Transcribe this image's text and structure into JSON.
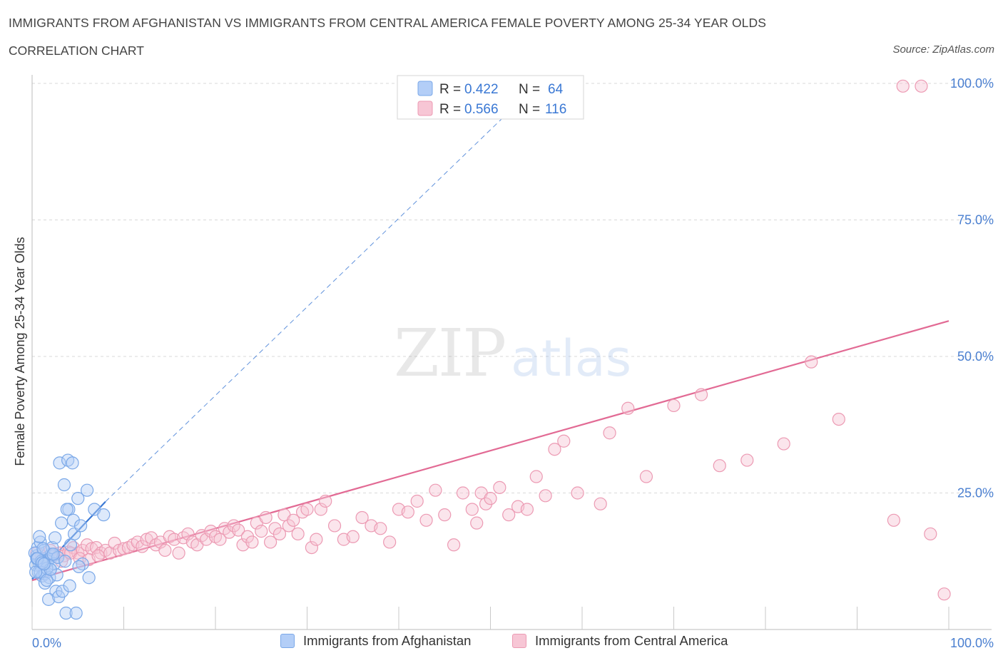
{
  "header": {
    "title": "IMMIGRANTS FROM AFGHANISTAN VS IMMIGRANTS FROM CENTRAL AMERICA FEMALE POVERTY AMONG 25-34 YEAR OLDS",
    "subtitle": "CORRELATION CHART",
    "source": "Source: ZipAtlas.com"
  },
  "watermark": {
    "zip": "ZIP",
    "atlas": "atlas"
  },
  "colors": {
    "blue_fill": "#b3cef7",
    "blue_stroke": "#7aa8e8",
    "blue_line": "#3a78d4",
    "pink_fill": "#f7c6d5",
    "pink_stroke": "#ec9ab3",
    "pink_line": "#e26a94",
    "axis_label": "#4a7fd0",
    "grid": "#d9d9d9"
  },
  "legend_box": {
    "rows": [
      {
        "r_label": "R = ",
        "r_value": "0.422",
        "n_label": "N = ",
        "n_value": "64"
      },
      {
        "r_label": "R = ",
        "r_value": "0.566",
        "n_label": "N = ",
        "n_value": "116"
      }
    ]
  },
  "chart_data": {
    "type": "scatter",
    "title": "IMMIGRANTS FROM AFGHANISTAN VS IMMIGRANTS FROM CENTRAL AMERICA FEMALE POVERTY AMONG 25-34 YEAR OLDS",
    "subtitle": "CORRELATION CHART",
    "xlabel": "",
    "ylabel": "Female Poverty Among 25-34 Year Olds",
    "xlim": [
      0,
      100
    ],
    "ylim": [
      0,
      100
    ],
    "x_tick_labels": [
      "0.0%",
      "100.0%"
    ],
    "y_tick_labels": [
      "25.0%",
      "50.0%",
      "75.0%",
      "100.0%"
    ],
    "y_ticks": [
      25,
      50,
      75,
      100
    ],
    "grid": true,
    "legend_position": "bottom",
    "series": [
      {
        "name": "Immigrants from Afghanistan",
        "R": 0.422,
        "N": 64,
        "trend": {
          "x": [
            0,
            8
          ],
          "y": [
            9.2,
            23.4
          ],
          "extended_x": [
            8,
            54
          ],
          "extended_y": [
            23.4,
            98
          ]
        },
        "x": [
          0.5,
          0.8,
          1.0,
          1.2,
          1.5,
          1.8,
          2.0,
          2.3,
          0.6,
          0.9,
          1.3,
          1.7,
          2.1,
          0.4,
          0.7,
          1.1,
          1.4,
          1.9,
          2.4,
          0.3,
          0.5,
          1.0,
          1.6,
          2.2,
          2.5,
          0.8,
          1.2,
          3.0,
          3.5,
          4.0,
          3.2,
          4.5,
          5.0,
          5.5,
          6.0,
          6.8,
          7.8,
          3.8,
          4.2,
          2.8,
          3.6,
          4.6,
          5.1,
          0.6,
          1.4,
          2.6,
          1.8,
          2.9,
          3.3,
          4.1,
          3.7,
          4.8,
          2.7,
          0.9,
          1.6,
          2.0,
          0.4,
          1.1,
          2.3,
          3.9,
          4.4,
          5.3,
          6.2,
          1.3
        ],
        "y": [
          13.5,
          12.0,
          11.5,
          10.2,
          13.0,
          12.8,
          11.0,
          13.5,
          15.0,
          16.0,
          14.5,
          12.5,
          13.8,
          11.8,
          10.5,
          9.8,
          10.2,
          9.5,
          12.0,
          14.0,
          13.0,
          12.5,
          11.2,
          15.0,
          16.8,
          17.0,
          14.8,
          30.5,
          26.5,
          22.0,
          19.5,
          20.0,
          24.0,
          12.0,
          25.5,
          22.0,
          21.0,
          22.0,
          15.5,
          13.2,
          12.5,
          17.5,
          11.5,
          13.0,
          8.5,
          7.0,
          5.5,
          6.0,
          7.0,
          8.0,
          3.0,
          3.0,
          10.0,
          10.5,
          9.0,
          11.0,
          10.5,
          12.2,
          13.8,
          31.0,
          30.5,
          19.0,
          9.5,
          12.0
        ]
      },
      {
        "name": "Immigrants from Central America",
        "R": 0.566,
        "N": 116,
        "trend": {
          "x": [
            0,
            100
          ],
          "y": [
            9.0,
            56.5
          ]
        },
        "x": [
          0.5,
          1.0,
          1.5,
          2.0,
          2.5,
          3.0,
          3.5,
          4.0,
          4.5,
          5.0,
          5.5,
          6.0,
          6.5,
          7.0,
          7.5,
          8.0,
          8.5,
          9.0,
          9.5,
          10.0,
          10.5,
          11.0,
          11.5,
          12.0,
          12.5,
          13.0,
          13.5,
          14.0,
          14.5,
          15.0,
          15.5,
          16.0,
          16.5,
          17.0,
          17.5,
          18.0,
          18.5,
          19.0,
          19.5,
          20.0,
          20.5,
          21.0,
          21.5,
          22.0,
          22.5,
          23.0,
          23.5,
          24.0,
          24.5,
          25.0,
          25.5,
          26.0,
          26.5,
          27.0,
          27.5,
          28.0,
          28.5,
          29.0,
          29.5,
          30.0,
          30.5,
          31.0,
          31.5,
          32.0,
          33.0,
          34.0,
          35.0,
          36.0,
          37.0,
          38.0,
          39.0,
          40.0,
          41.0,
          42.0,
          43.0,
          44.0,
          45.0,
          46.0,
          47.0,
          48.0,
          48.5,
          49.0,
          49.5,
          50.0,
          51.0,
          52.0,
          53.0,
          54.0,
          55.0,
          56.0,
          57.0,
          58.0,
          59.5,
          62.0,
          63.0,
          65.0,
          67.0,
          70.0,
          73.0,
          75.0,
          78.0,
          82.0,
          85.0,
          88.0,
          94.0,
          98.0,
          99.5,
          95.0,
          97.0,
          1.2,
          2.2,
          3.2,
          4.2,
          5.2,
          6.2,
          7.2
        ],
        "y": [
          14.0,
          13.5,
          13.0,
          14.5,
          13.8,
          14.0,
          13.5,
          14.2,
          15.0,
          14.0,
          14.5,
          15.5,
          14.8,
          15.0,
          14.0,
          14.5,
          14.0,
          15.8,
          14.5,
          14.8,
          15.0,
          15.5,
          16.0,
          15.2,
          16.5,
          16.8,
          15.5,
          16.0,
          14.5,
          17.0,
          16.5,
          14.0,
          16.8,
          17.5,
          16.0,
          15.5,
          17.2,
          16.5,
          18.0,
          17.0,
          16.5,
          18.5,
          17.8,
          19.0,
          18.2,
          15.5,
          17.0,
          16.0,
          19.5,
          18.0,
          20.5,
          16.0,
          18.5,
          17.5,
          21.0,
          19.0,
          20.0,
          17.5,
          21.5,
          22.0,
          15.0,
          16.5,
          22.0,
          23.5,
          19.0,
          16.5,
          17.0,
          20.5,
          19.0,
          18.5,
          16.0,
          22.0,
          21.5,
          23.5,
          20.0,
          25.5,
          21.0,
          15.5,
          25.0,
          22.0,
          19.5,
          25.0,
          23.0,
          24.0,
          26.0,
          21.0,
          22.5,
          22.0,
          28.0,
          24.5,
          33.0,
          34.5,
          25.0,
          23.0,
          36.0,
          40.5,
          28.0,
          41.0,
          43.0,
          30.0,
          31.0,
          34.0,
          49.0,
          38.5,
          20.0,
          17.5,
          6.5,
          99.5,
          99.5,
          13.0,
          13.5,
          12.5,
          14.0,
          13.0,
          12.8,
          13.5
        ]
      }
    ]
  },
  "axis_labels": {
    "x_left": "0.0%",
    "x_right": "100.0%"
  }
}
